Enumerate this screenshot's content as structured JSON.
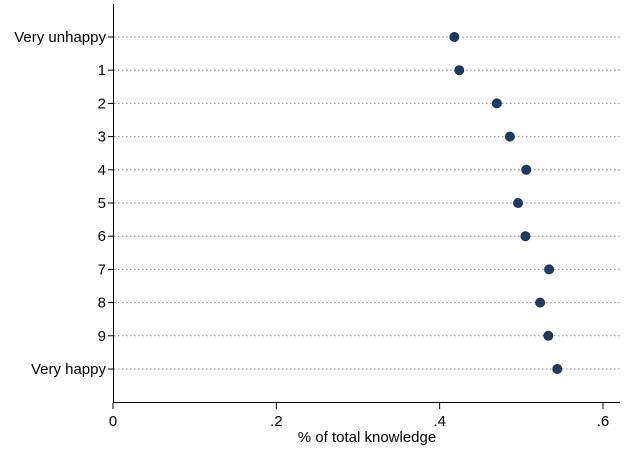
{
  "chart_data": {
    "type": "scatter",
    "categories": [
      "Very unhappy",
      "1",
      "2",
      "3",
      "4",
      "5",
      "6",
      "7",
      "8",
      "9",
      "Very happy"
    ],
    "values": [
      0.418,
      0.424,
      0.47,
      0.486,
      0.506,
      0.496,
      0.505,
      0.534,
      0.523,
      0.533,
      0.544
    ],
    "title": "",
    "xlabel": "% of total knowledge",
    "ylabel": "",
    "xlim": [
      0,
      0.6
    ],
    "x_ticks": [
      0,
      0.2,
      0.4,
      0.6
    ],
    "x_tick_labels": [
      "0",
      ".2",
      ".4",
      ".6"
    ],
    "grid": "dotted horizontal lines at each category",
    "colors": {
      "marker": "#1f3c5e",
      "marker_stroke": "#15304f",
      "grid": "#8c8c8c",
      "axis": "#000000"
    }
  }
}
